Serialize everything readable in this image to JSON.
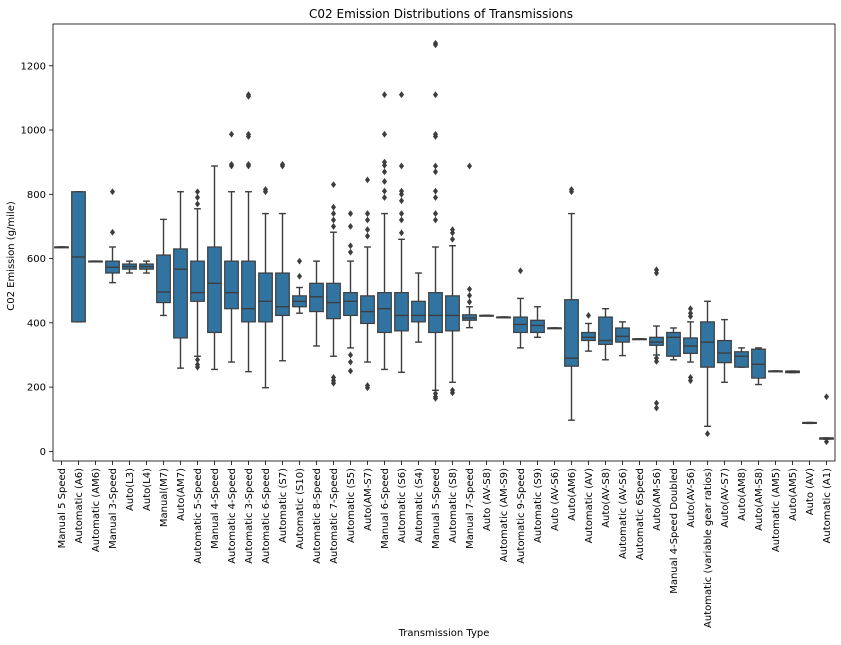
{
  "chart_data": {
    "type": "box",
    "title": "C02 Emission Distributions of Transmissions",
    "xlabel": "Transmission Type",
    "ylabel": "C02 Emission (g/mile)",
    "ylim": [
      -30,
      1330
    ],
    "yticks": [
      0,
      200,
      400,
      600,
      800,
      1000,
      1200
    ],
    "grid": false,
    "legend": "none",
    "box_color": "#3274a1",
    "line_color": "#3d3d3d",
    "categories": [
      {
        "label": "Manual 5 Speed",
        "q1": 636,
        "med": 636,
        "q3": 636,
        "lo": 636,
        "hi": 636,
        "fliers": []
      },
      {
        "label": "Automatic (A6)",
        "q1": 403,
        "med": 605,
        "q3": 808,
        "lo": 403,
        "hi": 808,
        "fliers": []
      },
      {
        "label": "Automatic (AM6)",
        "q1": 592,
        "med": 592,
        "q3": 592,
        "lo": 592,
        "hi": 592,
        "fliers": []
      },
      {
        "label": "Manual 3-Speed",
        "q1": 555,
        "med": 573,
        "q3": 592,
        "lo": 525,
        "hi": 636,
        "fliers": [
          808,
          682
        ]
      },
      {
        "label": "Auto(L3)",
        "q1": 567,
        "med": 575,
        "q3": 583,
        "lo": 555,
        "hi": 592,
        "fliers": []
      },
      {
        "label": "Auto(L4)",
        "q1": 567,
        "med": 575,
        "q3": 583,
        "lo": 555,
        "hi": 592,
        "fliers": []
      },
      {
        "label": "Manual(M7)",
        "q1": 463,
        "med": 496,
        "q3": 611,
        "lo": 423,
        "hi": 722,
        "fliers": []
      },
      {
        "label": "Auto(AM7)",
        "q1": 353,
        "med": 567,
        "q3": 630,
        "lo": 259,
        "hi": 808,
        "fliers": []
      },
      {
        "label": "Automatic 5-Speed",
        "q1": 467,
        "med": 494,
        "q3": 592,
        "lo": 296,
        "hi": 755,
        "fliers": [
          808,
          790,
          770,
          285,
          270,
          262
        ]
      },
      {
        "label": "Manual 4-Speed",
        "q1": 370,
        "med": 523,
        "q3": 636,
        "lo": 255,
        "hi": 888,
        "fliers": []
      },
      {
        "label": "Automatic 4-Speed",
        "q1": 444,
        "med": 494,
        "q3": 592,
        "lo": 278,
        "hi": 808,
        "fliers": [
          987,
          888,
          893
        ]
      },
      {
        "label": "Automatic 3-Speed",
        "q1": 403,
        "med": 444,
        "q3": 592,
        "lo": 248,
        "hi": 808,
        "fliers": [
          1110,
          1105,
          987,
          980,
          888,
          893
        ]
      },
      {
        "label": "Automatic 6-Speed",
        "q1": 403,
        "med": 467,
        "q3": 555,
        "lo": 198,
        "hi": 740,
        "fliers": [
          808,
          815
        ]
      },
      {
        "label": "Automatic (S7)",
        "q1": 423,
        "med": 450,
        "q3": 555,
        "lo": 282,
        "hi": 740,
        "fliers": [
          888,
          893
        ]
      },
      {
        "label": "Automatic (S10)",
        "q1": 450,
        "med": 467,
        "q3": 484,
        "lo": 430,
        "hi": 510,
        "fliers": [
          592,
          545
        ]
      },
      {
        "label": "Automatic 8-Speed",
        "q1": 435,
        "med": 481,
        "q3": 523,
        "lo": 328,
        "hi": 592,
        "fliers": []
      },
      {
        "label": "Automatic 7-Speed",
        "q1": 413,
        "med": 463,
        "q3": 523,
        "lo": 296,
        "hi": 682,
        "fliers": [
          830,
          760,
          740,
          720,
          700,
          230,
          220,
          212
        ]
      },
      {
        "label": "Automatic (S5)",
        "q1": 423,
        "med": 467,
        "q3": 494,
        "lo": 322,
        "hi": 592,
        "fliers": [
          740,
          700,
          640,
          620,
          300,
          278,
          250
        ]
      },
      {
        "label": "Auto(AM-S7)",
        "q1": 398,
        "med": 435,
        "q3": 484,
        "lo": 278,
        "hi": 636,
        "fliers": [
          845,
          740,
          720,
          690,
          670,
          205,
          198
        ]
      },
      {
        "label": "Manual 6-Speed",
        "q1": 370,
        "med": 444,
        "q3": 494,
        "lo": 255,
        "hi": 740,
        "fliers": [
          1110,
          987,
          900,
          890,
          870,
          840,
          810,
          790
        ]
      },
      {
        "label": "Automatic (S6)",
        "q1": 375,
        "med": 423,
        "q3": 494,
        "lo": 246,
        "hi": 660,
        "fliers": [
          1110,
          888,
          810,
          800,
          780,
          740,
          720,
          680
        ]
      },
      {
        "label": "Automatic (S4)",
        "q1": 403,
        "med": 423,
        "q3": 467,
        "lo": 340,
        "hi": 555,
        "fliers": []
      },
      {
        "label": "Manual 5-Speed",
        "q1": 370,
        "med": 423,
        "q3": 494,
        "lo": 190,
        "hi": 636,
        "fliers": [
          1270,
          1265,
          1110,
          987,
          980,
          888,
          870,
          810,
          790,
          740,
          720,
          180,
          170,
          165
        ]
      },
      {
        "label": "Automatic (S8)",
        "q1": 375,
        "med": 423,
        "q3": 484,
        "lo": 215,
        "hi": 640,
        "fliers": [
          690,
          680,
          660,
          190,
          182
        ]
      },
      {
        "label": "Manual 7-Speed",
        "q1": 408,
        "med": 415,
        "q3": 425,
        "lo": 385,
        "hi": 450,
        "fliers": [
          888,
          505,
          485,
          465
        ]
      },
      {
        "label": "Auto (AV-S8)",
        "q1": 423,
        "med": 423,
        "q3": 423,
        "lo": 423,
        "hi": 423,
        "fliers": []
      },
      {
        "label": "Automatic (AM-S9)",
        "q1": 418,
        "med": 418,
        "q3": 418,
        "lo": 418,
        "hi": 418,
        "fliers": []
      },
      {
        "label": "Automatic 9-Speed",
        "q1": 370,
        "med": 395,
        "q3": 418,
        "lo": 322,
        "hi": 476,
        "fliers": [
          562
        ]
      },
      {
        "label": "Automatic (S9)",
        "q1": 370,
        "med": 392,
        "q3": 408,
        "lo": 355,
        "hi": 450,
        "fliers": []
      },
      {
        "label": "Auto (AV-S6)",
        "q1": 384,
        "med": 384,
        "q3": 384,
        "lo": 384,
        "hi": 384,
        "fliers": []
      },
      {
        "label": "Auto(AM6)",
        "q1": 265,
        "med": 290,
        "q3": 472,
        "lo": 97,
        "hi": 740,
        "fliers": [
          808,
          815
        ]
      },
      {
        "label": "Automatic (AV)",
        "q1": 345,
        "med": 355,
        "q3": 370,
        "lo": 312,
        "hi": 398,
        "fliers": [
          423
        ]
      },
      {
        "label": "Auto(AV-S8)",
        "q1": 333,
        "med": 345,
        "q3": 418,
        "lo": 285,
        "hi": 444,
        "fliers": []
      },
      {
        "label": "Automatic (AV-S6)",
        "q1": 340,
        "med": 358,
        "q3": 384,
        "lo": 298,
        "hi": 403,
        "fliers": []
      },
      {
        "label": "Automatic 6Speed",
        "q1": 350,
        "med": 350,
        "q3": 350,
        "lo": 350,
        "hi": 350,
        "fliers": []
      },
      {
        "label": "Auto(AM-S6)",
        "q1": 330,
        "med": 340,
        "q3": 355,
        "lo": 300,
        "hi": 390,
        "fliers": [
          565,
          555,
          290,
          280,
          150,
          135
        ]
      },
      {
        "label": "Manual 4-Speed Doubled",
        "q1": 296,
        "med": 355,
        "q3": 370,
        "lo": 285,
        "hi": 384,
        "fliers": []
      },
      {
        "label": "Auto(AV-S6)",
        "q1": 305,
        "med": 328,
        "q3": 353,
        "lo": 278,
        "hi": 403,
        "fliers": [
          444,
          430,
          420,
          230,
          220
        ]
      },
      {
        "label": "Automatic (variable gear ratios)",
        "q1": 262,
        "med": 340,
        "q3": 403,
        "lo": 78,
        "hi": 467,
        "fliers": [
          55
        ]
      },
      {
        "label": "Auto(AV-S7)",
        "q1": 276,
        "med": 306,
        "q3": 345,
        "lo": 215,
        "hi": 410,
        "fliers": []
      },
      {
        "label": "Auto(AM8)",
        "q1": 262,
        "med": 296,
        "q3": 310,
        "lo": 262,
        "hi": 322,
        "fliers": []
      },
      {
        "label": "Auto(AM-S8)",
        "q1": 228,
        "med": 271,
        "q3": 318,
        "lo": 208,
        "hi": 322,
        "fliers": []
      },
      {
        "label": "Automatic (AM5)",
        "q1": 250,
        "med": 250,
        "q3": 250,
        "lo": 250,
        "hi": 250,
        "fliers": []
      },
      {
        "label": "Auto(AM5)",
        "q1": 245,
        "med": 247,
        "q3": 250,
        "lo": 245,
        "hi": 250,
        "fliers": []
      },
      {
        "label": "Auto (AV)",
        "q1": 87,
        "med": 88,
        "q3": 90,
        "lo": 87,
        "hi": 90,
        "fliers": []
      },
      {
        "label": "Automatic (A1)",
        "q1": 38,
        "med": 40,
        "q3": 42,
        "lo": 38,
        "hi": 42,
        "fliers": [
          170,
          30
        ]
      }
    ]
  }
}
